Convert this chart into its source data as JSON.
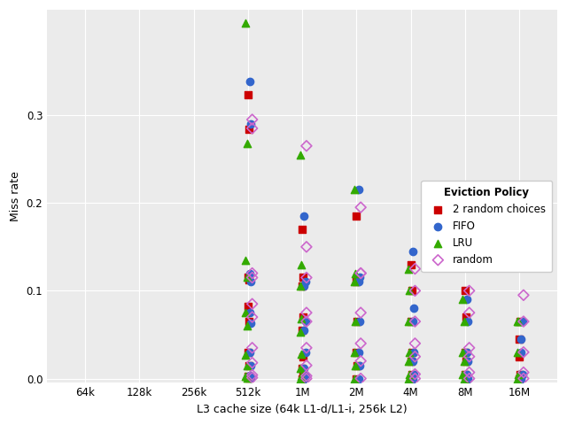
{
  "xlabel": "L3 cache size (64k L1-d/L1-i, 256k L2)",
  "ylabel": "Miss rate",
  "legend_title": "Eviction Policy",
  "panel_background": "#ebebeb",
  "plot_background": "#ffffff",
  "grid_color": "#ffffff",
  "x_ticks_labels": [
    "64k",
    "128k",
    "256k",
    "512k",
    "1M",
    "2M",
    "4M",
    "8M",
    "16M"
  ],
  "x_ticks_pos": [
    1,
    2,
    3,
    4,
    5,
    6,
    7,
    8,
    9
  ],
  "ylim": [
    -0.005,
    0.42
  ],
  "yticks": [
    0.0,
    0.1,
    0.2,
    0.3
  ],
  "policies": [
    "2 random choices",
    "FIFO",
    "LRU",
    "random"
  ],
  "colors": [
    "#cc0000",
    "#3366cc",
    "#33aa00",
    "#cc66cc"
  ],
  "markers": [
    "s",
    "o",
    "^",
    "D"
  ],
  "marker_filled": [
    true,
    true,
    true,
    false
  ],
  "markersize": 6,
  "data": {
    "2 random choices": {
      "x": [
        4.0,
        4.02,
        4.0,
        4.02,
        4.0,
        4.02,
        4.0,
        4.02,
        4.0,
        4.02,
        5.0,
        5.02,
        5.0,
        5.02,
        5.0,
        5.02,
        5.0,
        5.02,
        5.0,
        6.0,
        6.02,
        6.0,
        6.02,
        6.0,
        6.02,
        6.0,
        7.0,
        7.02,
        7.0,
        7.02,
        7.0,
        7.02,
        7.0,
        8.0,
        8.02,
        8.0,
        8.02,
        8.0,
        8.02,
        9.0,
        9.02,
        9.0,
        9.02,
        9.0
      ],
      "y": [
        0.323,
        0.284,
        0.115,
        0.112,
        0.082,
        0.065,
        0.03,
        0.015,
        0.003,
        0.001,
        0.17,
        0.115,
        0.105,
        0.07,
        0.055,
        0.025,
        0.012,
        0.003,
        0.0,
        0.185,
        0.112,
        0.11,
        0.065,
        0.03,
        0.015,
        0.0,
        0.13,
        0.1,
        0.065,
        0.03,
        0.02,
        0.005,
        0.0,
        0.1,
        0.07,
        0.03,
        0.02,
        0.005,
        0.0,
        0.045,
        0.065,
        0.025,
        0.005,
        0.0
      ]
    },
    "FIFO": {
      "x": [
        4.04,
        4.06,
        4.04,
        4.06,
        4.04,
        4.06,
        4.04,
        4.06,
        4.04,
        4.06,
        5.04,
        5.06,
        5.04,
        5.06,
        5.04,
        5.06,
        5.04,
        5.06,
        5.04,
        6.04,
        6.06,
        6.04,
        6.06,
        6.04,
        6.06,
        6.04,
        7.04,
        7.06,
        7.04,
        7.06,
        7.04,
        7.06,
        7.04,
        8.04,
        8.06,
        8.04,
        8.06,
        8.04,
        8.06,
        9.04,
        9.06,
        9.04,
        9.06,
        9.04
      ],
      "y": [
        0.338,
        0.29,
        0.12,
        0.11,
        0.075,
        0.063,
        0.03,
        0.015,
        0.004,
        0.001,
        0.185,
        0.11,
        0.105,
        0.065,
        0.055,
        0.03,
        0.012,
        0.003,
        0.0,
        0.215,
        0.115,
        0.11,
        0.065,
        0.03,
        0.015,
        0.0,
        0.145,
        0.08,
        0.065,
        0.03,
        0.02,
        0.005,
        0.0,
        0.09,
        0.065,
        0.03,
        0.02,
        0.005,
        0.0,
        0.045,
        0.065,
        0.03,
        0.005,
        0.0
      ]
    },
    "LRU": {
      "x": [
        3.96,
        3.98,
        3.96,
        3.98,
        3.96,
        3.98,
        3.96,
        3.98,
        3.96,
        3.98,
        4.96,
        4.98,
        4.96,
        4.98,
        4.96,
        4.98,
        4.96,
        4.98,
        4.96,
        5.96,
        5.98,
        5.96,
        5.98,
        5.96,
        5.98,
        5.96,
        6.96,
        6.98,
        6.96,
        6.98,
        6.96,
        6.98,
        6.96,
        7.96,
        7.98,
        7.96,
        7.98,
        7.96,
        7.98,
        8.96,
        8.98,
        8.96,
        8.98,
        8.96
      ],
      "y": [
        0.405,
        0.268,
        0.135,
        0.115,
        0.075,
        0.06,
        0.027,
        0.015,
        0.003,
        0.001,
        0.255,
        0.13,
        0.105,
        0.068,
        0.053,
        0.028,
        0.012,
        0.003,
        0.0,
        0.215,
        0.12,
        0.11,
        0.065,
        0.03,
        0.015,
        0.0,
        0.125,
        0.1,
        0.065,
        0.03,
        0.02,
        0.005,
        0.0,
        0.09,
        0.065,
        0.03,
        0.02,
        0.005,
        0.0,
        0.065,
        0.065,
        0.03,
        0.005,
        0.0
      ]
    },
    "random": {
      "x": [
        4.08,
        4.08,
        4.08,
        4.08,
        4.08,
        4.08,
        4.08,
        4.08,
        4.08,
        4.08,
        5.08,
        5.08,
        5.08,
        5.08,
        5.08,
        5.08,
        5.08,
        5.08,
        5.08,
        6.08,
        6.08,
        6.08,
        6.08,
        6.08,
        6.08,
        6.08,
        7.08,
        7.08,
        7.08,
        7.08,
        7.08,
        7.08,
        7.08,
        8.08,
        8.08,
        8.08,
        8.08,
        8.08,
        8.08,
        9.08,
        9.08,
        9.08,
        9.08,
        9.08
      ],
      "y": [
        0.295,
        0.285,
        0.12,
        0.115,
        0.085,
        0.07,
        0.035,
        0.018,
        0.004,
        0.001,
        0.265,
        0.15,
        0.115,
        0.075,
        0.065,
        0.035,
        0.015,
        0.003,
        0.0,
        0.195,
        0.12,
        0.12,
        0.075,
        0.04,
        0.02,
        0.0,
        0.125,
        0.1,
        0.065,
        0.04,
        0.025,
        0.005,
        0.0,
        0.1,
        0.075,
        0.035,
        0.025,
        0.007,
        0.0,
        0.095,
        0.065,
        0.03,
        0.007,
        0.0
      ]
    }
  }
}
